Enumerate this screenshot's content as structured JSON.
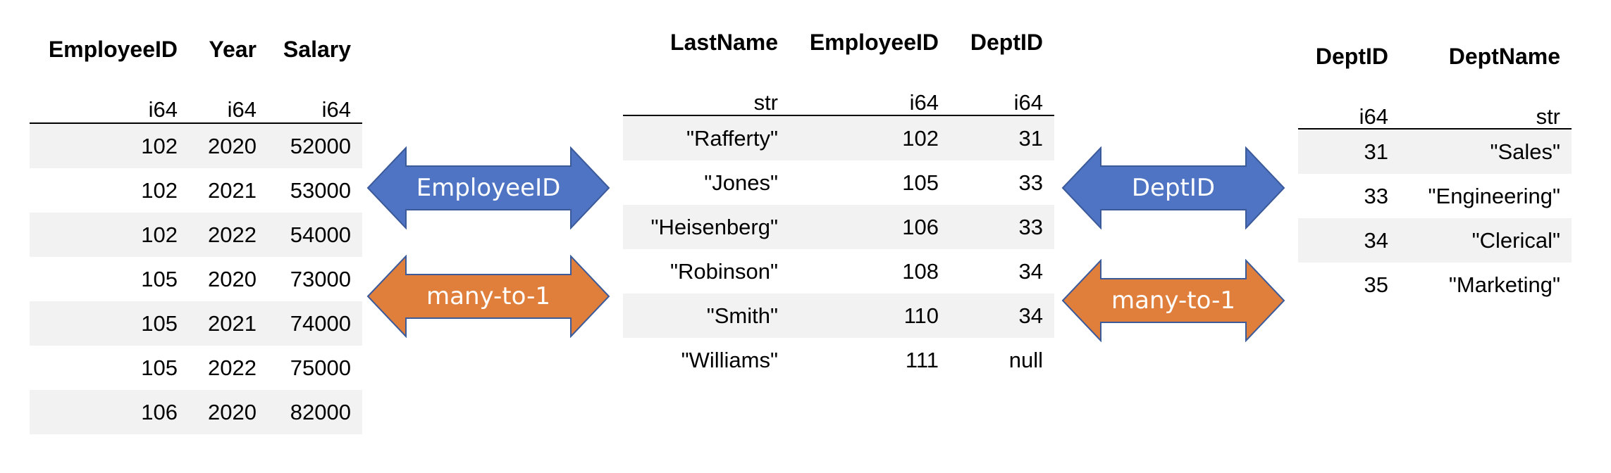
{
  "tables": {
    "salary": {
      "columns": [
        "EmployeeID",
        "Year",
        "Salary"
      ],
      "dtypes": [
        "i64",
        "i64",
        "i64"
      ],
      "rows": [
        [
          "102",
          "2020",
          "52000"
        ],
        [
          "102",
          "2021",
          "53000"
        ],
        [
          "102",
          "2022",
          "54000"
        ],
        [
          "105",
          "2020",
          "73000"
        ],
        [
          "105",
          "2021",
          "74000"
        ],
        [
          "105",
          "2022",
          "75000"
        ],
        [
          "106",
          "2020",
          "82000"
        ]
      ]
    },
    "employee": {
      "columns": [
        "LastName",
        "EmployeeID",
        "DeptID"
      ],
      "dtypes": [
        "str",
        "i64",
        "i64"
      ],
      "rows": [
        [
          "\"Rafferty\"",
          "102",
          "31"
        ],
        [
          "\"Jones\"",
          "105",
          "33"
        ],
        [
          "\"Heisenberg\"",
          "106",
          "33"
        ],
        [
          "\"Robinson\"",
          "108",
          "34"
        ],
        [
          "\"Smith\"",
          "110",
          "34"
        ],
        [
          "\"Williams\"",
          "111",
          "null"
        ]
      ]
    },
    "department": {
      "columns": [
        "DeptID",
        "DeptName"
      ],
      "dtypes": [
        "i64",
        "str"
      ],
      "rows": [
        [
          "31",
          "\"Sales\""
        ],
        [
          "33",
          "\"Engineering\""
        ],
        [
          "34",
          "\"Clerical\""
        ],
        [
          "35",
          "\"Marketing\""
        ]
      ]
    }
  },
  "arrows": {
    "left_key": "EmployeeID",
    "left_relation": "many-to-1",
    "right_key": "DeptID",
    "right_relation": "many-to-1"
  },
  "colors": {
    "key_arrow": "#4f74c4",
    "relation_arrow": "#e07f3c",
    "row_shade": "#f2f2f2"
  }
}
